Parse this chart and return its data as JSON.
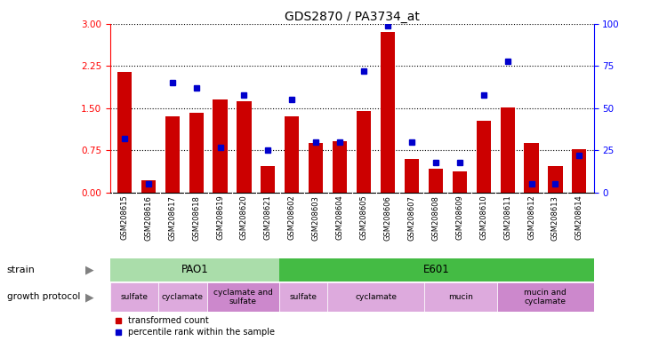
{
  "title": "GDS2870 / PA3734_at",
  "samples": [
    "GSM208615",
    "GSM208616",
    "GSM208617",
    "GSM208618",
    "GSM208619",
    "GSM208620",
    "GSM208621",
    "GSM208602",
    "GSM208603",
    "GSM208604",
    "GSM208605",
    "GSM208606",
    "GSM208607",
    "GSM208608",
    "GSM208609",
    "GSM208610",
    "GSM208611",
    "GSM208612",
    "GSM208613",
    "GSM208614"
  ],
  "transformed_count": [
    2.15,
    0.22,
    1.35,
    1.42,
    1.65,
    1.62,
    0.48,
    1.35,
    0.88,
    0.92,
    1.45,
    2.85,
    0.6,
    0.42,
    0.38,
    1.28,
    1.52,
    0.88,
    0.48,
    0.78
  ],
  "percentile_rank": [
    32,
    5,
    65,
    62,
    27,
    58,
    25,
    55,
    30,
    30,
    72,
    99,
    30,
    18,
    18,
    58,
    78,
    5,
    5,
    22
  ],
  "ylim_left": [
    0,
    3
  ],
  "ylim_right": [
    0,
    100
  ],
  "yticks_left": [
    0,
    0.75,
    1.5,
    2.25,
    3.0
  ],
  "yticks_right": [
    0,
    25,
    50,
    75,
    100
  ],
  "bar_color": "#cc0000",
  "dot_color": "#0000cc",
  "strain_PAO1_color": "#aaddaa",
  "strain_E601_color": "#44bb44",
  "gp_light_color": "#ddaadd",
  "gp_dark_color": "#cc88cc",
  "gp_segments": [
    {
      "label": "sulfate",
      "start": 0,
      "end": 2,
      "dark": false
    },
    {
      "label": "cyclamate",
      "start": 2,
      "end": 4,
      "dark": false
    },
    {
      "label": "cyclamate and\nsulfate",
      "start": 4,
      "end": 7,
      "dark": true
    },
    {
      "label": "sulfate",
      "start": 7,
      "end": 9,
      "dark": false
    },
    {
      "label": "cyclamate",
      "start": 9,
      "end": 13,
      "dark": false
    },
    {
      "label": "mucin",
      "start": 13,
      "end": 16,
      "dark": false
    },
    {
      "label": "mucin and\ncyclamate",
      "start": 16,
      "end": 20,
      "dark": true
    }
  ],
  "background_color": "#ffffff",
  "tick_bg_color": "#dddddd"
}
